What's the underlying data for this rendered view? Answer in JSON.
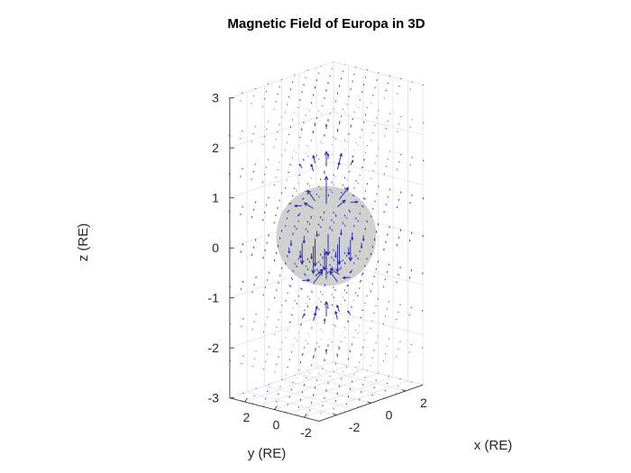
{
  "chart_data": {
    "type": "quiver3d",
    "title": "Magnetic Field of Europa in 3D",
    "xlabel": "x (RE)",
    "ylabel": "y (RE)",
    "zlabel": "z (RE)",
    "xlim": [
      -3,
      3
    ],
    "ylim": [
      -3,
      3
    ],
    "zlim": [
      -3,
      3
    ],
    "xticks": [
      -2,
      0,
      2
    ],
    "yticks": [
      2,
      0,
      -2
    ],
    "zticks": [
      3,
      2,
      1,
      0,
      -1,
      -2,
      -3
    ],
    "grid": true,
    "sphere": {
      "radius": 1,
      "color": "#d0d0d0"
    },
    "arrow_color": "#1f1fa8",
    "field": "dipole"
  }
}
